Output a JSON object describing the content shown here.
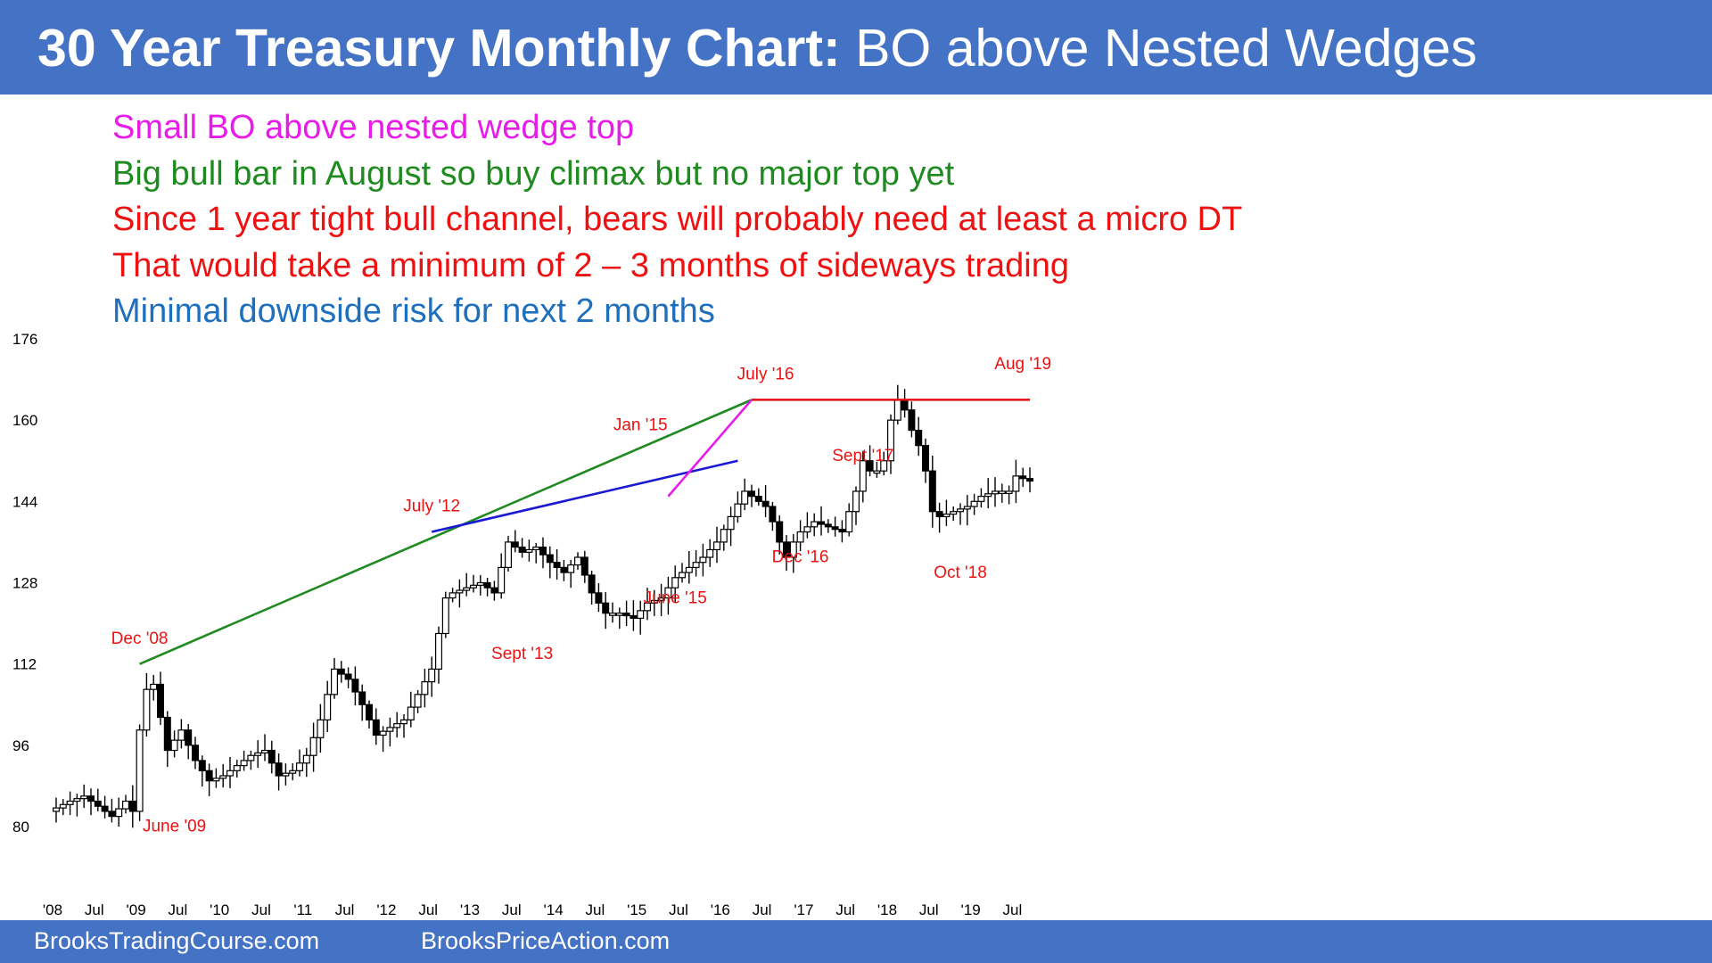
{
  "header": {
    "title_bold": "30 Year Treasury Monthly Chart:",
    "title_rest": "BO above Nested Wedges"
  },
  "notes": [
    {
      "text": "Small BO above nested wedge top",
      "color": "#e81ce8"
    },
    {
      "text": "Big bull bar in August so buy climax but no major top yet",
      "color": "#1f8a1f"
    },
    {
      "text": "Since 1 year tight bull channel, bears will probably need at least a micro DT",
      "color": "#ee1111"
    },
    {
      "text": "That would take a minimum of 2 – 3 months of sideways trading",
      "color": "#ee1111"
    },
    {
      "text": "Minimal downside risk for next 2 months",
      "color": "#1f6fbf"
    }
  ],
  "footer": {
    "left": "BrooksTradingCourse.com",
    "right": "BrooksPriceAction.com"
  },
  "chart_data": {
    "type": "candlestick",
    "ylim": [
      72,
      176
    ],
    "y_ticks": [
      176,
      160,
      144,
      128,
      112,
      96,
      80
    ],
    "x_ticks": [
      "'08",
      "Jul",
      "'09",
      "Jul",
      "'10",
      "Jul",
      "'11",
      "Jul",
      "'12",
      "Jul",
      "'13",
      "Jul",
      "'14",
      "Jul",
      "'15",
      "Jul",
      "'16",
      "Jul",
      "'17",
      "Jul",
      "'18",
      "Jul",
      "'19",
      "Jul"
    ],
    "x_tick_month_index": [
      0,
      6,
      12,
      18,
      24,
      30,
      36,
      42,
      48,
      54,
      60,
      66,
      72,
      78,
      84,
      90,
      96,
      102,
      108,
      114,
      120,
      126,
      132,
      138
    ],
    "month_count": 141,
    "bull_color": "#ffffff",
    "bear_color": "#000000",
    "anchors": [
      [
        0,
        83
      ],
      [
        3,
        85
      ],
      [
        5,
        86
      ],
      [
        7,
        84
      ],
      [
        9,
        82
      ],
      [
        11,
        85
      ],
      [
        12,
        83
      ],
      [
        13,
        99
      ],
      [
        14,
        107
      ],
      [
        15,
        108
      ],
      [
        17,
        95
      ],
      [
        19,
        99
      ],
      [
        21,
        93
      ],
      [
        23,
        89
      ],
      [
        25,
        90
      ],
      [
        29,
        94
      ],
      [
        31,
        95
      ],
      [
        33,
        90
      ],
      [
        35,
        91
      ],
      [
        37,
        94
      ],
      [
        39,
        101
      ],
      [
        41,
        111
      ],
      [
        43,
        109
      ],
      [
        45,
        104
      ],
      [
        47,
        98
      ],
      [
        51,
        101
      ],
      [
        53,
        106
      ],
      [
        55,
        111
      ],
      [
        57,
        125
      ],
      [
        58,
        126
      ],
      [
        60,
        127
      ],
      [
        62,
        128
      ],
      [
        64,
        126
      ],
      [
        66,
        136
      ],
      [
        68,
        134
      ],
      [
        70,
        135
      ],
      [
        72,
        132
      ],
      [
        74,
        130
      ],
      [
        76,
        133
      ],
      [
        78,
        126
      ],
      [
        80,
        122
      ],
      [
        82,
        122
      ],
      [
        84,
        121
      ],
      [
        86,
        124
      ],
      [
        88,
        125
      ],
      [
        90,
        129
      ],
      [
        92,
        131
      ],
      [
        94,
        133
      ],
      [
        96,
        136
      ],
      [
        98,
        141
      ],
      [
        100,
        146
      ],
      [
        101,
        145
      ],
      [
        103,
        143
      ],
      [
        104,
        140
      ],
      [
        105,
        136
      ],
      [
        106,
        133
      ],
      [
        107,
        136
      ],
      [
        108,
        138
      ],
      [
        110,
        140
      ],
      [
        112,
        139
      ],
      [
        114,
        138
      ],
      [
        116,
        146
      ],
      [
        117,
        152
      ],
      [
        118,
        150
      ],
      [
        119,
        150
      ],
      [
        120,
        152
      ],
      [
        121,
        160
      ],
      [
        122,
        164
      ],
      [
        123,
        162
      ],
      [
        124,
        158
      ],
      [
        125,
        155
      ],
      [
        126,
        150
      ],
      [
        127,
        142
      ],
      [
        128,
        141
      ],
      [
        130,
        142
      ],
      [
        132,
        143
      ],
      [
        134,
        145
      ],
      [
        136,
        146
      ],
      [
        138,
        146
      ],
      [
        139,
        149
      ],
      [
        141,
        148
      ],
      [
        142,
        148
      ],
      [
        144,
        147
      ],
      [
        146,
        144
      ],
      [
        148,
        143
      ],
      [
        150,
        142
      ],
      [
        152,
        142
      ],
      [
        154,
        142
      ],
      [
        156,
        138
      ],
      [
        158,
        144
      ],
      [
        160,
        147
      ],
      [
        161,
        146
      ],
      [
        163,
        153
      ],
      [
        165,
        155
      ],
      [
        166,
        155
      ],
      [
        167,
        164
      ],
      [
        168,
        166
      ],
      [
        169,
        165
      ]
    ],
    "lines": [
      {
        "name": "green-wedge-line",
        "color": "#1f8a1f",
        "points": [
          [
            12,
            112
          ],
          [
            100,
            164
          ]
        ]
      },
      {
        "name": "blue-wedge-line",
        "color": "#1a1ad4",
        "points": [
          [
            54,
            138
          ],
          [
            98,
            152
          ]
        ]
      },
      {
        "name": "magenta-wedge-line",
        "color": "#e81ce8",
        "points": [
          [
            88,
            145
          ],
          [
            100,
            164
          ]
        ]
      },
      {
        "name": "red-resistance-line",
        "color": "#e01010",
        "points": [
          [
            100,
            164
          ],
          [
            140,
            164
          ]
        ]
      }
    ],
    "annotations": [
      {
        "text": "Dec '08",
        "x": 12,
        "y": 116,
        "color": "#ee1111"
      },
      {
        "text": "June '09",
        "x": 17,
        "y": 79,
        "color": "#ee1111"
      },
      {
        "text": "July '12",
        "x": 54,
        "y": 142,
        "color": "#ee1111"
      },
      {
        "text": "Sept '13",
        "x": 67,
        "y": 113,
        "color": "#ee1111"
      },
      {
        "text": "Jan '15",
        "x": 84,
        "y": 158,
        "color": "#ee1111"
      },
      {
        "text": "June '15",
        "x": 89,
        "y": 124,
        "color": "#ee1111"
      },
      {
        "text": "July '16",
        "x": 102,
        "y": 168,
        "color": "#ee1111"
      },
      {
        "text": "Dec '16",
        "x": 107,
        "y": 132,
        "color": "#ee1111"
      },
      {
        "text": "Sept '17",
        "x": 116,
        "y": 152,
        "color": "#ee1111"
      },
      {
        "text": "Oct '18",
        "x": 130,
        "y": 129,
        "color": "#ee1111"
      },
      {
        "text": "Aug '19",
        "x": 139,
        "y": 170,
        "color": "#ee1111"
      }
    ]
  }
}
